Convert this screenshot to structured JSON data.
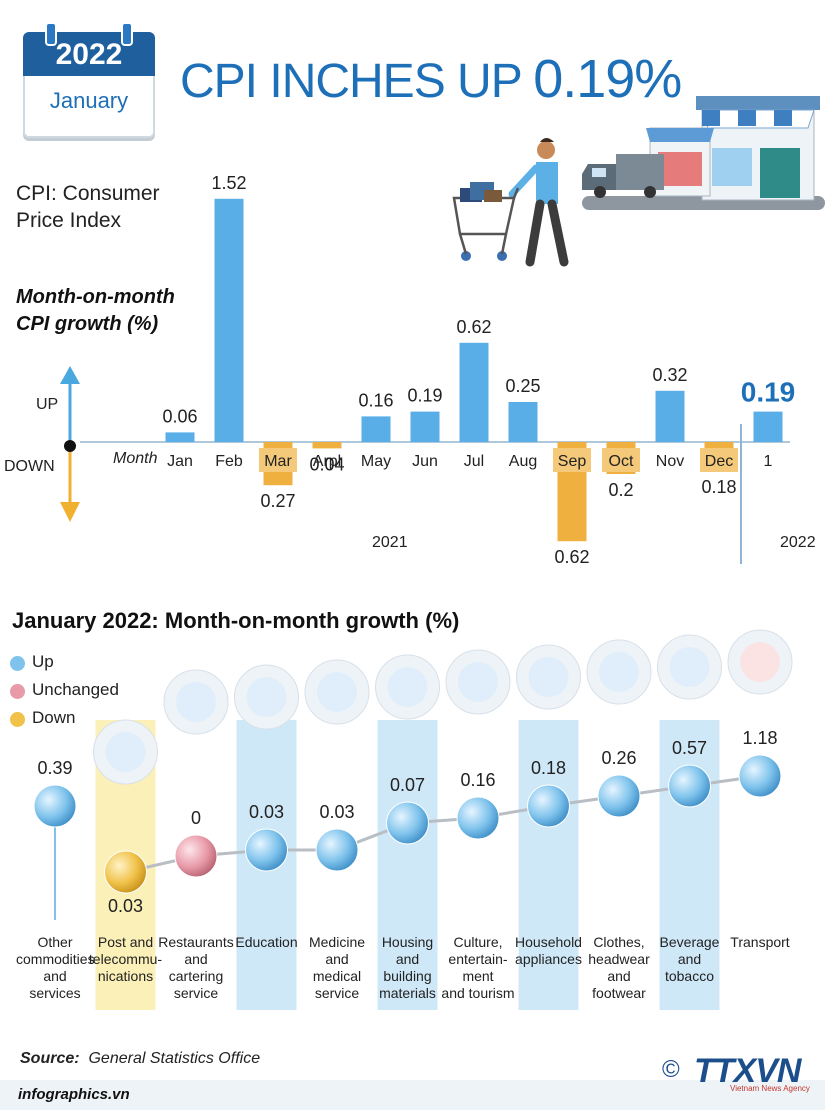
{
  "header": {
    "year": "2022",
    "month": "January",
    "title_prefix": "CPI INCHES UP ",
    "title_value": "0.19%"
  },
  "cpi_definition": [
    "CPI: Consumer",
    "Price Index"
  ],
  "mom_label": [
    "Month-on-month",
    "CPI growth (%)"
  ],
  "direction": {
    "up": "UP",
    "down": "DOWN"
  },
  "month_word": "Month",
  "year_labels": {
    "y2021": "2021",
    "y2022": "2022"
  },
  "section2_title": "January 2022: Month-on-month growth (%)",
  "legend": [
    {
      "label": "Up",
      "color": "#7fc3ec"
    },
    {
      "label": "Unchanged",
      "color": "#e89aa8"
    },
    {
      "label": "Down",
      "color": "#f0c24a"
    }
  ],
  "source_label": "Source:",
  "source_text": "General Statistics Office",
  "site": "infographics.vn",
  "copyright": "©",
  "agency": "TTXVN",
  "agency_sub": "Vietnam News Agency",
  "colors": {
    "up_bar": "#5aaee8",
    "down_bar": "#f0b040",
    "title_blue": "#1d6fb8",
    "highlight_col_blue": "#cfe8f8",
    "highlight_col_yellow": "#fbf0b8"
  },
  "chart_data": [
    {
      "type": "bar",
      "categories": [
        "Jan",
        "Feb",
        "Mar",
        "Arpl",
        "May",
        "Jun",
        "Jul",
        "Aug",
        "Sep",
        "Oct",
        "Nov",
        "Dec",
        "1"
      ],
      "values": [
        0.06,
        1.52,
        -0.27,
        -0.04,
        0.16,
        0.19,
        0.62,
        0.25,
        -0.62,
        -0.2,
        0.32,
        -0.18,
        0.19
      ],
      "value_labels": [
        "0.06",
        "1.52",
        "0.27",
        "0.04",
        "0.16",
        "0.19",
        "0.62",
        "0.25",
        "0.62",
        "0.2",
        "0.32",
        "0.18",
        "0.19"
      ],
      "highlighted_categories": [
        "Mar",
        "Sep",
        "Oct",
        "Dec"
      ],
      "years": [
        "2021",
        "2022"
      ]
    },
    {
      "type": "scatter",
      "categories": [
        "Other commodities and services",
        "Post and telecommunications",
        "Restaurants and cartering service",
        "Education",
        "Medicine and medical service",
        "Housing and building materials",
        "Culture, entertainment and tourism",
        "Household appliances",
        "Clothes, headwear and footwear",
        "Beverage and tobacco",
        "Transport"
      ],
      "label_lines": [
        "Other\ncommodities\nand services",
        "Post and\ntelecommu-\nnications",
        "Restaurants\nand\ncartering\nservice",
        "Education",
        "Medicine\nand\nmedical\nservice",
        "Housing\nand\nbuilding\nmaterials",
        "Culture,\nentertain-\nment\nand tourism",
        "Household\nappliances",
        "Clothes,\nheadwear\nand\nfootwear",
        "Beverage\nand\ntobacco",
        "Transport"
      ],
      "values": [
        0.39,
        -0.03,
        0,
        0.03,
        0.03,
        0.07,
        0.16,
        0.18,
        0.26,
        0.57,
        1.18
      ],
      "value_labels": [
        "0.39",
        "0.03",
        "0",
        "0.03",
        "0.03",
        "0.07",
        "0.16",
        "0.18",
        "0.26",
        "0.57",
        "1.18"
      ],
      "status": [
        "up",
        "down",
        "unchanged",
        "up",
        "up",
        "up",
        "up",
        "up",
        "up",
        "up",
        "up"
      ],
      "icons": [
        "",
        "antenna-tower-icon",
        "food-plate-icon",
        "graduation-cap-icon",
        "medicine-capsule-icon",
        "house-icon",
        "clapperboard-icon",
        "washing-machine-icon",
        "clothes-shoes-icon",
        "beverage-cigarette-icon",
        "traffic-light-icon"
      ]
    }
  ]
}
